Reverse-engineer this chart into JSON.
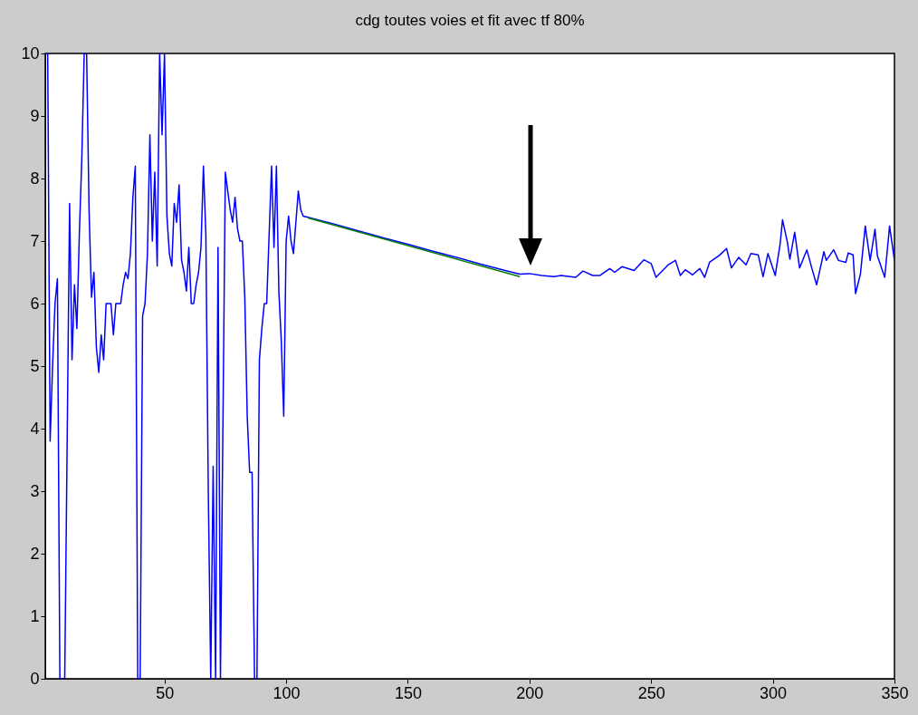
{
  "chart_data": {
    "type": "line",
    "title": "cdg toutes voies et fit avec tf 80%",
    "xlim": [
      1,
      350
    ],
    "xticks": [
      50,
      100,
      150,
      200,
      250,
      300,
      350
    ],
    "ylim": [
      0,
      10
    ],
    "yticks": [
      0,
      1,
      2,
      3,
      4,
      5,
      6,
      7,
      8,
      9,
      10
    ],
    "grid": false,
    "legend": false,
    "marker": "none",
    "line_style": "solid",
    "series": [
      {
        "color": "#0000ff",
        "x": [
          1,
          2,
          3,
          4,
          5,
          6,
          7,
          8,
          9,
          10,
          11,
          12,
          13,
          14,
          15,
          16,
          17,
          18,
          19,
          20,
          21,
          22,
          23,
          24,
          25,
          26,
          27,
          28,
          29,
          30,
          31,
          32,
          33,
          34,
          35,
          36,
          37,
          38,
          39,
          40,
          41,
          42,
          43,
          44,
          45,
          46,
          47,
          48,
          49,
          50,
          51,
          52,
          53,
          54,
          55,
          56,
          57,
          58,
          59,
          60,
          61,
          62,
          63,
          64,
          65,
          66,
          67,
          68,
          69,
          70,
          71,
          72,
          73,
          74,
          75,
          76,
          77,
          78,
          79,
          80,
          81,
          82,
          83,
          84,
          85,
          86,
          87,
          88,
          89,
          90,
          91,
          92,
          93,
          94,
          95,
          96,
          97,
          98,
          99,
          100,
          101,
          102,
          103,
          104,
          105,
          106,
          107,
          110,
          120,
          130,
          140,
          150,
          160,
          170,
          180,
          190,
          196,
          200,
          205,
          210,
          213,
          219,
          222,
          226,
          229,
          233,
          235,
          238,
          243,
          247,
          250,
          252,
          257,
          260,
          262,
          264,
          267,
          270,
          272,
          274,
          278,
          281,
          283,
          286,
          289,
          291,
          294,
          296,
          298,
          301,
          303,
          304,
          306,
          307,
          309,
          311,
          314,
          316,
          318,
          321,
          322,
          325,
          327,
          330,
          331,
          333,
          334,
          336,
          338,
          340,
          342,
          343,
          346,
          348,
          350
        ],
        "values": [
          10,
          10,
          3.8,
          5.0,
          6.0,
          6.4,
          0,
          0,
          0,
          3.8,
          7.6,
          5.1,
          6.3,
          5.6,
          7.1,
          8.3,
          10,
          10,
          7.5,
          6.1,
          6.5,
          5.3,
          4.9,
          5.5,
          5.1,
          6.0,
          6.0,
          6.0,
          5.5,
          6.0,
          6.0,
          6.0,
          6.3,
          6.5,
          6.4,
          6.8,
          7.7,
          8.2,
          0,
          0,
          5.8,
          6.0,
          6.8,
          8.7,
          7.0,
          8.1,
          6.6,
          10,
          8.7,
          10,
          7.4,
          6.8,
          6.6,
          7.6,
          7.3,
          7.9,
          6.7,
          6.5,
          6.2,
          6.9,
          6.0,
          6.0,
          6.3,
          6.5,
          6.9,
          8.2,
          7.1,
          3.0,
          0,
          3.4,
          0,
          6.9,
          0,
          4.0,
          8.1,
          7.8,
          7.5,
          7.3,
          7.7,
          7.2,
          7.0,
          7.0,
          6.1,
          4.2,
          3.3,
          3.3,
          0,
          0,
          5.1,
          5.6,
          6.0,
          6.0,
          7.1,
          8.2,
          6.9,
          8.2,
          6.2,
          5.4,
          4.2,
          7.0,
          7.4,
          7.0,
          6.8,
          7.3,
          7.8,
          7.5,
          7.4,
          7.37,
          7.27,
          7.16,
          7.05,
          6.95,
          6.84,
          6.74,
          6.63,
          6.53,
          6.47,
          6.48,
          6.45,
          6.43,
          6.45,
          6.42,
          6.52,
          6.45,
          6.45,
          6.56,
          6.5,
          6.59,
          6.53,
          6.7,
          6.64,
          6.42,
          6.62,
          6.69,
          6.45,
          6.54,
          6.46,
          6.56,
          6.42,
          6.66,
          6.77,
          6.88,
          6.57,
          6.74,
          6.62,
          6.8,
          6.78,
          6.43,
          6.8,
          6.45,
          6.95,
          7.34,
          6.98,
          6.71,
          7.14,
          6.57,
          6.86,
          6.57,
          6.3,
          6.83,
          6.69,
          6.86,
          6.69,
          6.66,
          6.81,
          6.78,
          6.16,
          6.47,
          7.24,
          6.69,
          7.19,
          6.76,
          6.42,
          7.24,
          6.69
        ]
      },
      {
        "color": "#008000",
        "x": [
          109,
          196
        ],
        "values": [
          7.37,
          6.43
        ]
      }
    ]
  }
}
